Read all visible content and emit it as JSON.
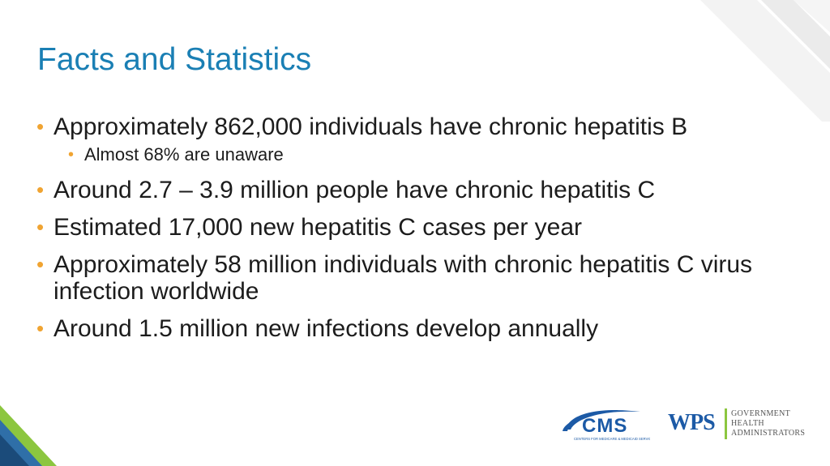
{
  "slide": {
    "title": "Facts and Statistics",
    "bullet_glyph": "•",
    "bullets": [
      {
        "level": 1,
        "text": "Approximately 862,000 individuals have chronic hepatitis B"
      },
      {
        "level": 2,
        "text": "Almost 68% are unaware"
      },
      {
        "level": 1,
        "text": "Around 2.7 – 3.9 million people have chronic hepatitis C"
      },
      {
        "level": 1,
        "text": "Estimated 17,000 new hepatitis C cases per year"
      },
      {
        "level": 1,
        "text": "Approximately 58 million individuals with chronic hepatitis C virus infection worldwide"
      },
      {
        "level": 1,
        "text": "Around 1.5 million new infections develop annually"
      }
    ]
  },
  "footer": {
    "cms_logo": {
      "mark": "CMS",
      "tagline": "CENTERS FOR MEDICARE & MEDICAID SERVICES"
    },
    "wps_logo": {
      "mark": "WPS",
      "lines": [
        "GOVERNMENT",
        "HEALTH",
        "ADMINISTRATORS"
      ]
    }
  },
  "colors": {
    "title": "#1a7fb4",
    "bullet_dot": "#f0a432",
    "body_text": "#1c1c1c",
    "cms_blue": "#1c5aa6",
    "wps_blue": "#1c5aa6",
    "accent_green": "#8cc63f"
  }
}
